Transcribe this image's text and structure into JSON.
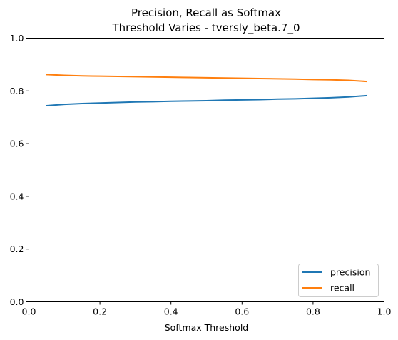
{
  "chart_data": {
    "type": "line",
    "title_line1": "Precision, Recall as Softmax",
    "title_line2": "Threshold Varies - tversly_beta.7_0",
    "xlabel": "Softmax Threshold",
    "ylabel": "",
    "xlim": [
      0.0,
      1.0
    ],
    "ylim": [
      0.0,
      1.0
    ],
    "xticks": [
      "0.0",
      "0.2",
      "0.4",
      "0.6",
      "0.8",
      "1.0"
    ],
    "yticks": [
      "0.0",
      "0.2",
      "0.4",
      "0.6",
      "0.8",
      "1.0"
    ],
    "grid": false,
    "legend_position": "lower-right",
    "x": [
      0.05,
      0.1,
      0.15,
      0.2,
      0.25,
      0.3,
      0.35,
      0.4,
      0.45,
      0.5,
      0.55,
      0.6,
      0.65,
      0.7,
      0.75,
      0.8,
      0.85,
      0.9,
      0.95
    ],
    "series": [
      {
        "name": "precision",
        "color": "#1f77b4",
        "values": [
          0.744,
          0.749,
          0.752,
          0.754,
          0.756,
          0.758,
          0.759,
          0.761,
          0.762,
          0.763,
          0.765,
          0.766,
          0.767,
          0.769,
          0.77,
          0.772,
          0.774,
          0.777,
          0.782
        ]
      },
      {
        "name": "recall",
        "color": "#ff7f0e",
        "values": [
          0.862,
          0.859,
          0.857,
          0.856,
          0.855,
          0.854,
          0.853,
          0.852,
          0.851,
          0.85,
          0.849,
          0.848,
          0.847,
          0.846,
          0.845,
          0.843,
          0.842,
          0.84,
          0.836
        ]
      }
    ]
  }
}
